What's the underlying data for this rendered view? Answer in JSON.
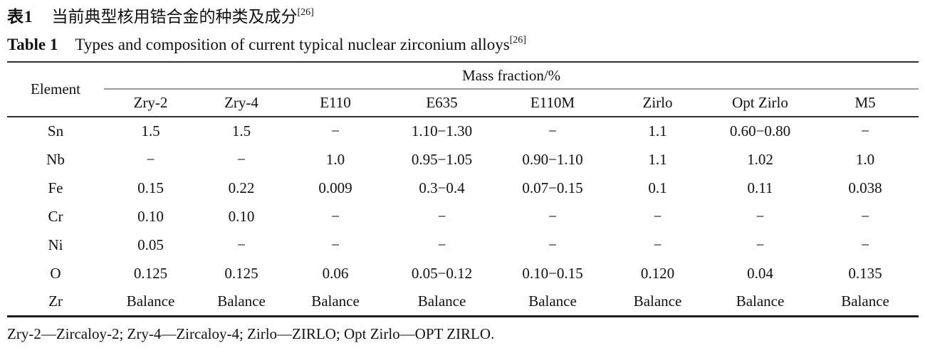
{
  "caption_zh": {
    "label": "表1",
    "text": "当前典型核用锆合金的种类及成分",
    "ref": "[26]"
  },
  "caption_en": {
    "label": "Table 1",
    "text": "Types and composition of current typical nuclear zirconium alloys",
    "ref": "[26]"
  },
  "table": {
    "element_header": "Element",
    "group_header": "Mass fraction/%",
    "columns": [
      "Zry-2",
      "Zry-4",
      "E110",
      "E635",
      "E110M",
      "Zirlo",
      "Opt Zirlo",
      "M5"
    ],
    "rows": [
      {
        "element": "Sn",
        "values": [
          "1.5",
          "1.5",
          "−",
          "1.10−1.30",
          "−",
          "1.1",
          "0.60−0.80",
          "−"
        ]
      },
      {
        "element": "Nb",
        "values": [
          "−",
          "−",
          "1.0",
          "0.95−1.05",
          "0.90−1.10",
          "1.1",
          "1.02",
          "1.0"
        ]
      },
      {
        "element": "Fe",
        "values": [
          "0.15",
          "0.22",
          "0.009",
          "0.3−0.4",
          "0.07−0.15",
          "0.1",
          "0.11",
          "0.038"
        ]
      },
      {
        "element": "Cr",
        "values": [
          "0.10",
          "0.10",
          "−",
          "−",
          "−",
          "−",
          "−",
          "−"
        ]
      },
      {
        "element": "Ni",
        "values": [
          "0.05",
          "−",
          "−",
          "−",
          "−",
          "−",
          "−",
          "−"
        ]
      },
      {
        "element": "O",
        "values": [
          "0.125",
          "0.125",
          "0.06",
          "0.05−0.12",
          "0.10−0.15",
          "0.120",
          "0.04",
          "0.135"
        ]
      },
      {
        "element": "Zr",
        "values": [
          "Balance",
          "Balance",
          "Balance",
          "Balance",
          "Balance",
          "Balance",
          "Balance",
          "Balance"
        ]
      }
    ]
  },
  "footnote": "Zry-2—Zircaloy-2; Zry-4—Zircaloy-4; Zirlo—ZIRLO; Opt Zirlo—OPT ZIRLO.",
  "colors": {
    "text": "#111111",
    "rule_dark": "#2f2f2f",
    "rule_light": "#9a9a9a",
    "background": "#ffffff"
  }
}
